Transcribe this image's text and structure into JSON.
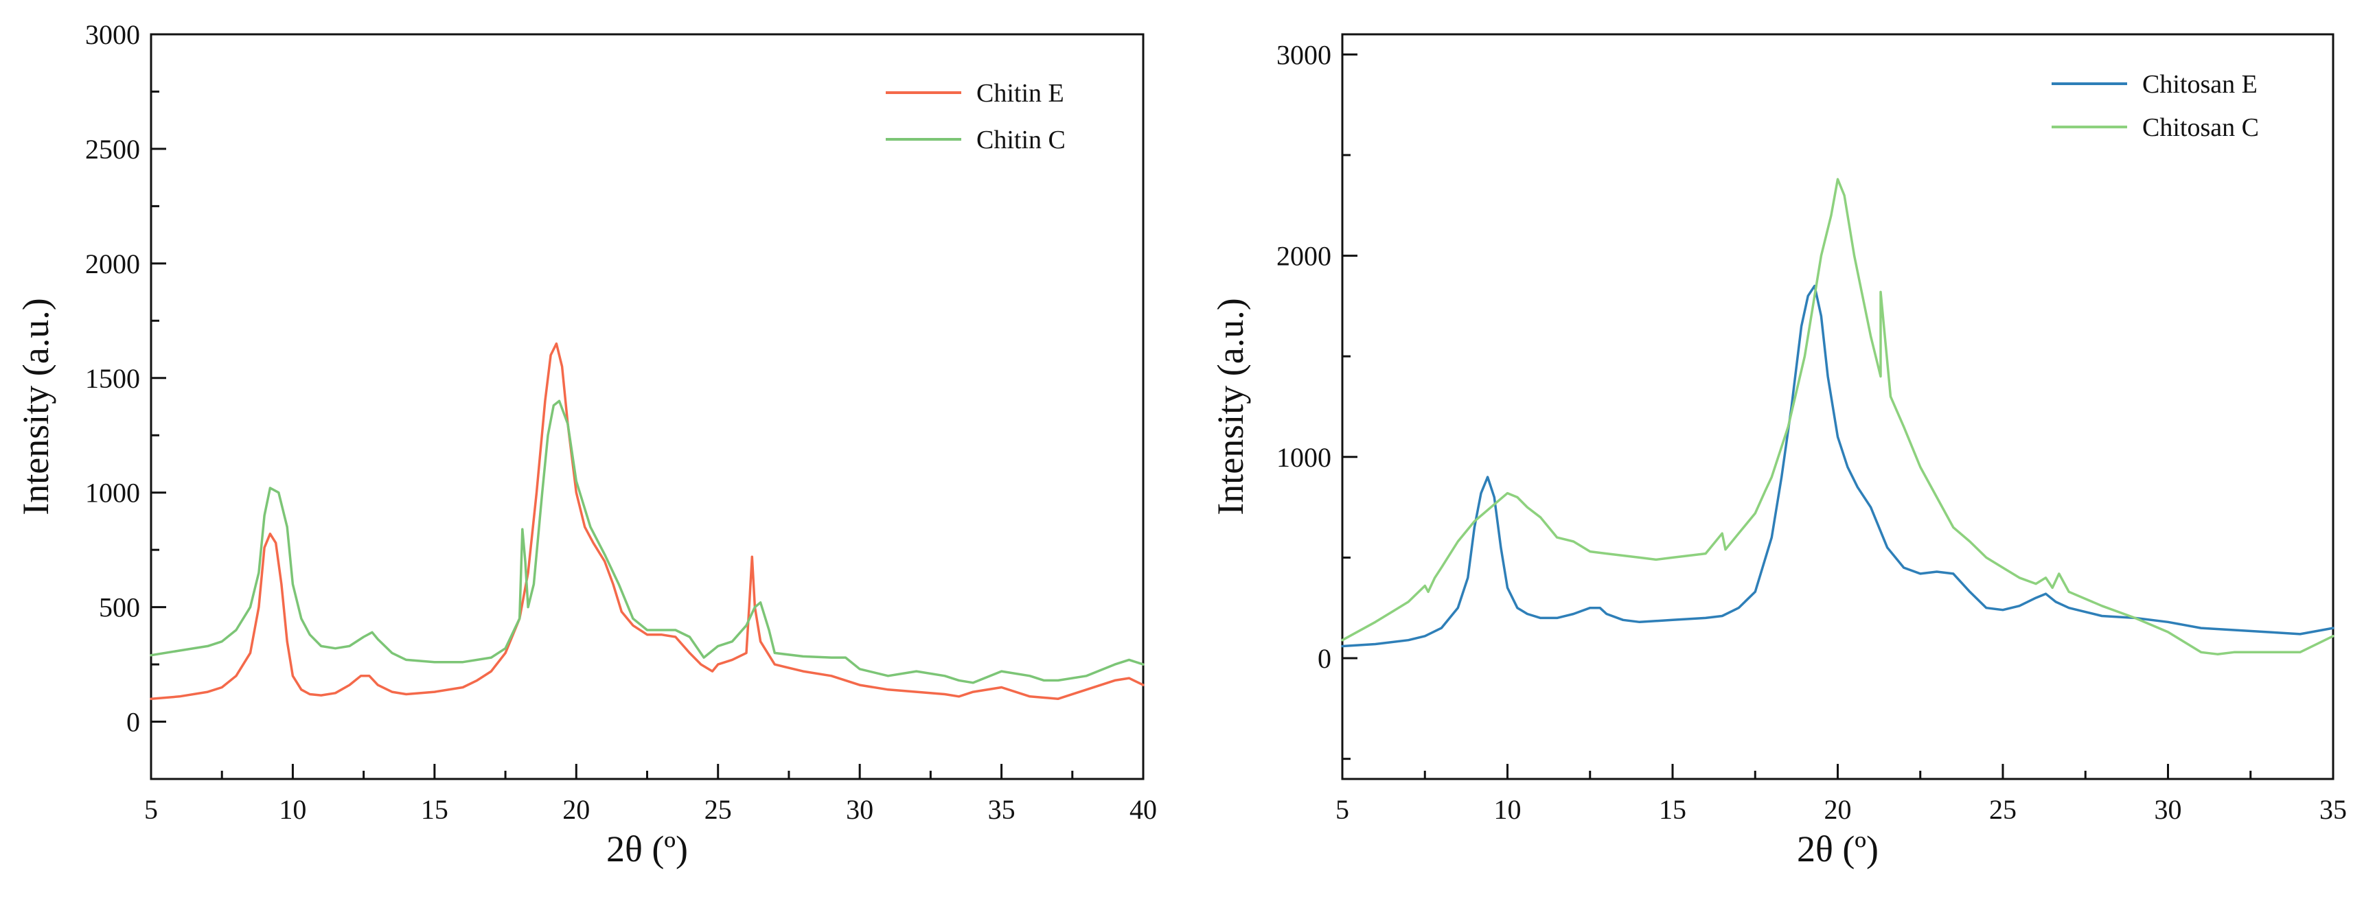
{
  "chart_data": [
    {
      "type": "line",
      "title": "",
      "xlabel": "2θ (º)",
      "ylabel": "Intensity (a.u.)",
      "xlim": [
        5,
        40
      ],
      "ylim": [
        -250,
        3000
      ],
      "xticks": [
        5,
        10,
        15,
        20,
        25,
        30,
        35,
        40
      ],
      "yticks": [
        0,
        500,
        1000,
        1500,
        2000,
        2500,
        3000
      ],
      "grid": false,
      "legend": "top-right",
      "series": [
        {
          "name": "Chitin E",
          "color": "#f4694a",
          "x": [
            5,
            6,
            7,
            7.5,
            8,
            8.5,
            8.8,
            9.0,
            9.2,
            9.4,
            9.6,
            9.8,
            10.0,
            10.3,
            10.6,
            11,
            11.5,
            12,
            12.4,
            12.7,
            13,
            13.5,
            14,
            15,
            16,
            16.5,
            17,
            17.5,
            18,
            18.3,
            18.6,
            18.9,
            19.1,
            19.3,
            19.5,
            19.7,
            20,
            20.3,
            20.6,
            21,
            21.3,
            21.6,
            22,
            22.5,
            23,
            23.5,
            24,
            24.4,
            24.8,
            25,
            25.5,
            26,
            26.1,
            26.2,
            26.3,
            26.5,
            27,
            28,
            29,
            30,
            31,
            32,
            33,
            33.5,
            34,
            35,
            36,
            37,
            38,
            39,
            39.5,
            40
          ],
          "y": [
            100,
            110,
            130,
            150,
            200,
            300,
            500,
            760,
            820,
            780,
            600,
            350,
            200,
            140,
            120,
            115,
            125,
            160,
            200,
            200,
            160,
            130,
            120,
            130,
            150,
            180,
            220,
            300,
            450,
            650,
            1000,
            1400,
            1600,
            1650,
            1550,
            1300,
            1000,
            850,
            780,
            700,
            600,
            480,
            420,
            380,
            380,
            370,
            300,
            250,
            220,
            250,
            270,
            300,
            500,
            720,
            500,
            350,
            250,
            220,
            200,
            160,
            140,
            130,
            120,
            110,
            130,
            150,
            110,
            100,
            140,
            180,
            190,
            160
          ]
        },
        {
          "name": "Chitin C",
          "color": "#7cc576",
          "x": [
            5,
            6,
            7,
            7.5,
            8,
            8.5,
            8.8,
            9.0,
            9.2,
            9.5,
            9.8,
            10.0,
            10.3,
            10.6,
            11,
            11.5,
            12,
            12.5,
            12.8,
            13,
            13.5,
            14,
            15,
            16,
            17,
            17.5,
            18,
            18.1,
            18.2,
            18.3,
            18.5,
            18.8,
            19.0,
            19.2,
            19.4,
            19.7,
            20,
            20.5,
            21,
            21.5,
            22,
            22.5,
            23,
            23.5,
            24,
            24.5,
            25,
            25.5,
            26,
            26.3,
            26.5,
            26.8,
            27,
            28,
            29,
            29.5,
            30,
            31,
            32,
            33,
            33.5,
            34,
            35,
            36,
            36.5,
            37,
            38,
            39,
            39.5,
            40
          ],
          "y": [
            290,
            310,
            330,
            350,
            400,
            500,
            650,
            900,
            1020,
            1000,
            850,
            600,
            450,
            380,
            330,
            320,
            330,
            370,
            390,
            360,
            300,
            270,
            260,
            260,
            280,
            320,
            450,
            840,
            700,
            500,
            600,
            1000,
            1250,
            1380,
            1400,
            1300,
            1050,
            850,
            730,
            600,
            450,
            400,
            400,
            400,
            370,
            280,
            330,
            350,
            420,
            500,
            520,
            400,
            300,
            285,
            280,
            280,
            230,
            200,
            220,
            200,
            180,
            170,
            220,
            200,
            180,
            180,
            200,
            250,
            270,
            250
          ]
        }
      ]
    },
    {
      "type": "line",
      "title": "",
      "xlabel": "2θ (º)",
      "ylabel": "Intensity (a.u.)",
      "xlim": [
        5,
        35
      ],
      "ylim": [
        -600,
        3100
      ],
      "xticks": [
        5,
        10,
        15,
        20,
        25,
        30,
        35
      ],
      "yticks": [
        0,
        1000,
        2000,
        3000
      ],
      "grid": false,
      "legend": "top-right",
      "series": [
        {
          "name": "Chitosan E",
          "color": "#2e7fb8",
          "x": [
            5,
            6,
            7,
            7.5,
            8,
            8.5,
            8.8,
            9.0,
            9.2,
            9.4,
            9.6,
            9.8,
            10.0,
            10.3,
            10.6,
            11,
            11.5,
            12,
            12.5,
            12.8,
            13,
            13.5,
            14,
            15,
            16,
            16.5,
            17,
            17.5,
            18,
            18.3,
            18.6,
            18.9,
            19.1,
            19.3,
            19.5,
            19.7,
            20,
            20.3,
            20.6,
            21,
            21.5,
            22,
            22.5,
            23,
            23.5,
            24,
            24.5,
            25,
            25.5,
            26,
            26.3,
            26.6,
            27,
            28,
            29,
            30,
            31,
            32,
            33,
            34,
            35
          ],
          "y": [
            60,
            70,
            90,
            110,
            150,
            250,
            400,
            650,
            820,
            900,
            800,
            550,
            350,
            250,
            220,
            200,
            200,
            220,
            250,
            250,
            220,
            190,
            180,
            190,
            200,
            210,
            250,
            330,
            600,
            900,
            1250,
            1650,
            1800,
            1850,
            1700,
            1400,
            1100,
            950,
            850,
            750,
            550,
            450,
            420,
            430,
            420,
            330,
            250,
            240,
            260,
            300,
            320,
            280,
            250,
            210,
            200,
            180,
            150,
            140,
            130,
            120,
            150
          ]
        },
        {
          "name": "Chitosan C",
          "color": "#8dd17e",
          "x": [
            5,
            6,
            7,
            7.5,
            7.6,
            7.8,
            8,
            8.5,
            9,
            9.5,
            10,
            10.3,
            10.6,
            11,
            11.5,
            12,
            12.5,
            13,
            14,
            14.5,
            15,
            16,
            16.5,
            16.6,
            17,
            17.5,
            17.8,
            18,
            18.5,
            19,
            19.3,
            19.5,
            19.8,
            20,
            20.2,
            20.5,
            21,
            21.3,
            21.3,
            21.6,
            22,
            22.5,
            23,
            23.5,
            24,
            24.5,
            25,
            25.5,
            26,
            26.3,
            26.5,
            26.7,
            27,
            28,
            29,
            30,
            31,
            31.5,
            32,
            33,
            34,
            35
          ],
          "y": [
            90,
            180,
            280,
            360,
            330,
            400,
            450,
            580,
            680,
            750,
            820,
            800,
            750,
            700,
            600,
            580,
            530,
            520,
            500,
            490,
            500,
            520,
            620,
            540,
            620,
            720,
            830,
            900,
            1150,
            1500,
            1800,
            2000,
            2200,
            2380,
            2300,
            2000,
            1600,
            1400,
            1820,
            1300,
            1150,
            950,
            800,
            650,
            580,
            500,
            450,
            400,
            370,
            400,
            350,
            420,
            330,
            260,
            200,
            130,
            30,
            20,
            30,
            30,
            30,
            110
          ]
        }
      ]
    }
  ]
}
